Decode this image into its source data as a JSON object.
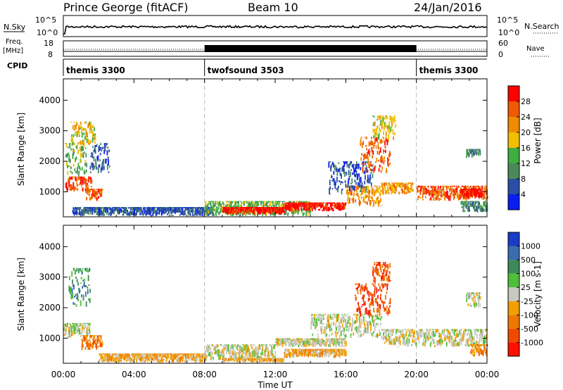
{
  "header": {
    "station": "Prince George (fitACF)",
    "beam": "Beam 10",
    "date": "24/Jan/2016"
  },
  "top_panels": {
    "nsky_label": "N.Sky",
    "nsearch_label": "N.Search",
    "nsky_ticks": [
      "10^5",
      "10^0"
    ],
    "nsearch_ticks": [
      "10^5",
      "10^0"
    ],
    "freq_label": "Freq.",
    "freq_unit": "[MHz]",
    "freq_ticks": [
      "18",
      "8"
    ],
    "nave_label": "Nave",
    "nave_ticks": [
      "60",
      "0"
    ],
    "cpid_label": "CPID",
    "cpid_segments": [
      {
        "name": "themis 3300",
        "start_h": 0,
        "end_h": 8
      },
      {
        "name": "twofsound 3503",
        "start_h": 8,
        "end_h": 20
      },
      {
        "name": "themis 3300",
        "start_h": 20,
        "end_h": 24
      }
    ]
  },
  "colors": {
    "power": [
      "#0a1ef0",
      "#2b4fa6",
      "#4a8a5a",
      "#3fae3f",
      "#f0c000",
      "#f08c00",
      "#f05a00",
      "#ff0000"
    ],
    "velocity": [
      "#1a3cc8",
      "#3a6cb0",
      "#3d8b5a",
      "#4fbf3a",
      "#c8c8c0",
      "#f0a000",
      "#f07800",
      "#f04a00",
      "#ff1000"
    ]
  },
  "chart_data": [
    {
      "type": "heatmap",
      "title": "Power",
      "ylabel": "Slant Range [km]",
      "xlabel": "Time UT",
      "x_ticks": [
        "00:00",
        "04:00",
        "08:00",
        "12:00",
        "16:00",
        "20:00",
        "00:00"
      ],
      "y_ticks": [
        "1000",
        "2000",
        "3000",
        "4000"
      ],
      "xlim_hours": [
        0,
        24
      ],
      "ylim_km": [
        180,
        4700
      ],
      "colorbar_label": "Power [dB]",
      "colorbar_ticks": [
        "4",
        "8",
        "12",
        "16",
        "20",
        "24",
        "28"
      ],
      "colorbar_range": [
        0,
        32
      ],
      "regions": [
        {
          "t0": 0.1,
          "t1": 1.6,
          "r0": 1000,
          "r1": 1500,
          "level": 6
        },
        {
          "t0": 0.1,
          "t1": 1.3,
          "r0": 1500,
          "r1": 2600,
          "level": 3
        },
        {
          "t0": 0.4,
          "t1": 1.8,
          "r0": 2500,
          "r1": 3300,
          "level": 4
        },
        {
          "t0": 1.2,
          "t1": 2.2,
          "r0": 700,
          "r1": 1100,
          "level": 6
        },
        {
          "t0": 1.5,
          "t1": 2.6,
          "r0": 1600,
          "r1": 2600,
          "level": 1
        },
        {
          "t0": 0.5,
          "t1": 8.5,
          "r0": 200,
          "r1": 500,
          "level": 1
        },
        {
          "t0": 8.0,
          "t1": 14.0,
          "r0": 200,
          "r1": 700,
          "level": 3
        },
        {
          "t0": 9.0,
          "t1": 12.5,
          "r0": 250,
          "r1": 500,
          "level": 7
        },
        {
          "t0": 12.5,
          "t1": 16.0,
          "r0": 350,
          "r1": 650,
          "level": 7
        },
        {
          "t0": 16.0,
          "t1": 18.0,
          "r0": 500,
          "r1": 1200,
          "level": 5
        },
        {
          "t0": 15.0,
          "t1": 17.5,
          "r0": 900,
          "r1": 2000,
          "level": 1
        },
        {
          "t0": 16.8,
          "t1": 18.5,
          "r0": 1600,
          "r1": 2800,
          "level": 6
        },
        {
          "t0": 17.5,
          "t1": 18.8,
          "r0": 2700,
          "r1": 3500,
          "level": 4
        },
        {
          "t0": 18.0,
          "t1": 19.8,
          "r0": 900,
          "r1": 1300,
          "level": 5
        },
        {
          "t0": 20.0,
          "t1": 24.0,
          "r0": 700,
          "r1": 1200,
          "level": 6
        },
        {
          "t0": 22.5,
          "t1": 23.7,
          "r0": 800,
          "r1": 1100,
          "level": 7
        },
        {
          "t0": 22.5,
          "t1": 24.0,
          "r0": 300,
          "r1": 700,
          "level": 2
        },
        {
          "t0": 22.8,
          "t1": 23.6,
          "r0": 2100,
          "r1": 2400,
          "level": 2
        }
      ]
    },
    {
      "type": "heatmap",
      "title": "Velocity",
      "ylabel": "Slant Range [km]",
      "xlabel": "Time UT",
      "x_ticks": [
        "00:00",
        "04:00",
        "08:00",
        "12:00",
        "16:00",
        "20:00",
        "00:00"
      ],
      "y_ticks": [
        "1000",
        "2000",
        "3000",
        "4000"
      ],
      "xlim_hours": [
        0,
        24
      ],
      "ylim_km": [
        180,
        4700
      ],
      "colorbar_label": "Velocity [m s-1]",
      "colorbar_ticks": [
        "1000",
        "500",
        "100",
        "25",
        "-25",
        "-100",
        "-500",
        "-1000"
      ],
      "regions": [
        {
          "t0": 0.0,
          "t1": 1.5,
          "r0": 1000,
          "r1": 1500,
          "level": 4
        },
        {
          "t0": 0.3,
          "t1": 1.5,
          "r0": 2000,
          "r1": 3300,
          "level": 2
        },
        {
          "t0": 1.0,
          "t1": 2.2,
          "r0": 600,
          "r1": 1100,
          "level": 6
        },
        {
          "t0": 2.0,
          "t1": 8.0,
          "r0": 200,
          "r1": 500,
          "level": 5
        },
        {
          "t0": 8.0,
          "t1": 12.0,
          "r0": 250,
          "r1": 800,
          "level": 4
        },
        {
          "t0": 9.0,
          "t1": 12.5,
          "r0": 200,
          "r1": 350,
          "level": 5
        },
        {
          "t0": 12.5,
          "t1": 16.0,
          "r0": 350,
          "r1": 650,
          "level": 5
        },
        {
          "t0": 12.0,
          "t1": 16.0,
          "r0": 700,
          "r1": 1000,
          "level": 4
        },
        {
          "t0": 14.0,
          "t1": 18.0,
          "r0": 1000,
          "r1": 1800,
          "level": 4
        },
        {
          "t0": 16.5,
          "t1": 18.5,
          "r0": 1700,
          "r1": 2800,
          "level": 7
        },
        {
          "t0": 17.5,
          "t1": 18.5,
          "r0": 2800,
          "r1": 3500,
          "level": 7
        },
        {
          "t0": 18.0,
          "t1": 20.0,
          "r0": 700,
          "r1": 1300,
          "level": 4
        },
        {
          "t0": 20.0,
          "t1": 24.0,
          "r0": 700,
          "r1": 1300,
          "level": 4
        },
        {
          "t0": 23.0,
          "t1": 24.0,
          "r0": 400,
          "r1": 800,
          "level": 6
        },
        {
          "t0": 22.8,
          "t1": 23.6,
          "r0": 2000,
          "r1": 2500,
          "level": 4
        }
      ]
    }
  ]
}
